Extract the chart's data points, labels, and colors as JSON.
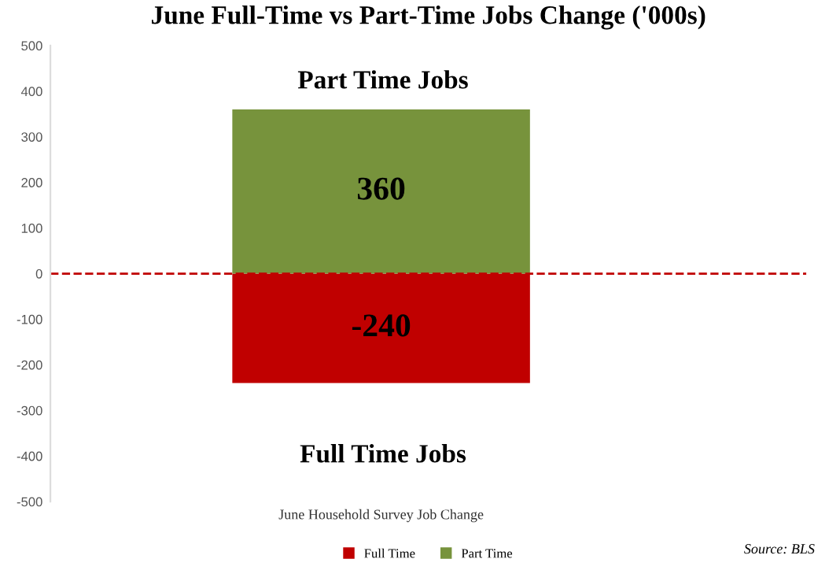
{
  "chart_data": {
    "type": "bar",
    "title": "June Full-Time vs Part-Time Jobs Change ('000s)",
    "categories": [
      "June Household Survey Job Change"
    ],
    "stacked": true,
    "series": [
      {
        "name": "Full Time",
        "color": "#c00000",
        "values": [
          -240
        ]
      },
      {
        "name": "Part Time",
        "color": "#77933c",
        "values": [
          360
        ]
      }
    ],
    "ylim": [
      -500,
      500
    ],
    "yticks": [
      -500,
      -400,
      -300,
      -200,
      -100,
      0,
      100,
      200,
      300,
      400,
      500
    ],
    "data_labels": true,
    "legend": "bottom",
    "grid": false,
    "ref_lines": [
      {
        "axis": "y",
        "value": 0,
        "color": "#c00000",
        "line_style": "dashed"
      }
    ],
    "annotations": [
      "Part Time Jobs",
      "Full Time Jobs",
      "Source: BLS"
    ]
  }
}
